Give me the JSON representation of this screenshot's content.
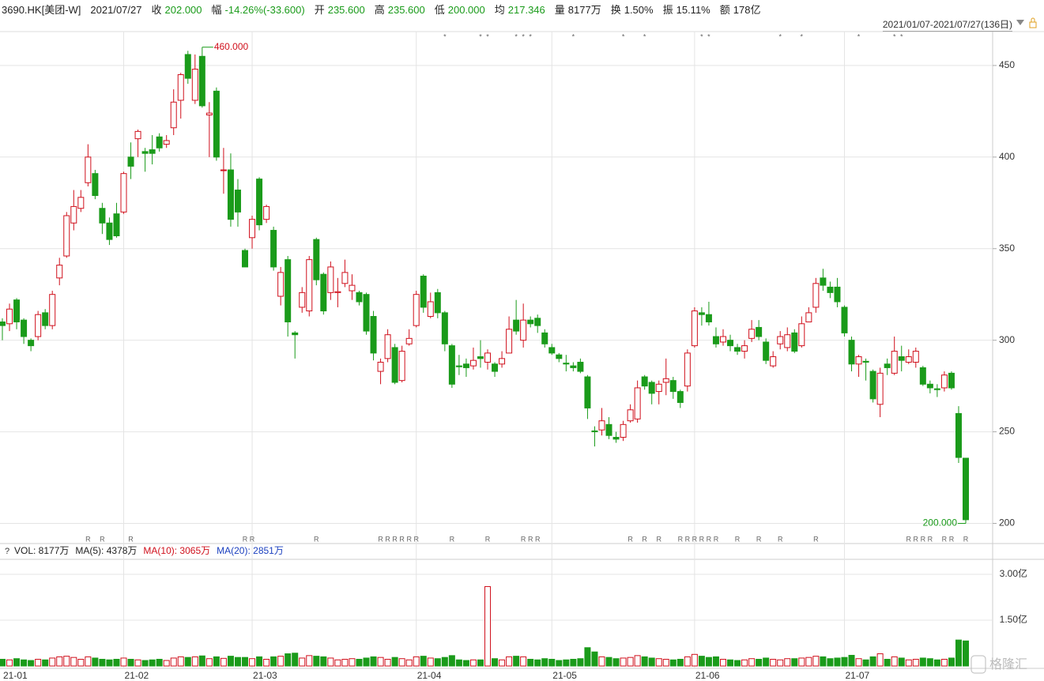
{
  "header": {
    "symbol": "3690.HK[美团-W]",
    "date": "2021/07/27",
    "fields": [
      {
        "label": "收",
        "value": "202.000",
        "color": "#1a9b1a"
      },
      {
        "label": "幅",
        "value": "-14.26%(-33.600)",
        "color": "#1a9b1a"
      },
      {
        "label": "开",
        "value": "235.600",
        "color": "#1a9b1a"
      },
      {
        "label": "高",
        "value": "235.600",
        "color": "#1a9b1a"
      },
      {
        "label": "低",
        "value": "200.000",
        "color": "#1a9b1a"
      },
      {
        "label": "均",
        "value": "217.346",
        "color": "#1a9b1a"
      },
      {
        "label": "量",
        "value": "8177万",
        "color": "#222222"
      },
      {
        "label": "换",
        "value": "1.50%",
        "color": "#222222"
      },
      {
        "label": "振",
        "value": "15.11%",
        "color": "#222222"
      },
      {
        "label": "额",
        "value": "178亿",
        "color": "#222222"
      }
    ]
  },
  "range": "2021/01/07-2021/07/27(136日)",
  "watermark": "格隆汇",
  "chart_data": [
    {
      "type": "candlestick",
      "up_color": "#d0101c",
      "down_color": "#1a9b1a",
      "ylim": [
        189,
        468.5
      ],
      "yticks": [
        200,
        250,
        300,
        350,
        400,
        450
      ],
      "grid": true,
      "high_label": "460.000",
      "low_label": "200.000",
      "categories": [
        "21-01",
        null,
        null,
        null,
        null,
        null,
        null,
        null,
        null,
        null,
        null,
        null,
        null,
        null,
        null,
        null,
        null,
        "21-02",
        null,
        null,
        null,
        null,
        null,
        null,
        null,
        null,
        null,
        null,
        null,
        null,
        null,
        null,
        null,
        null,
        null,
        "21-03",
        null,
        null,
        null,
        null,
        null,
        null,
        null,
        null,
        null,
        null,
        null,
        null,
        null,
        null,
        null,
        null,
        null,
        null,
        null,
        null,
        null,
        null,
        "21-04",
        null,
        null,
        null,
        null,
        null,
        null,
        null,
        null,
        null,
        null,
        null,
        null,
        null,
        null,
        null,
        null,
        null,
        null,
        "21-05",
        null,
        null,
        null,
        null,
        null,
        null,
        null,
        null,
        null,
        null,
        null,
        null,
        null,
        null,
        null,
        null,
        null,
        null,
        null,
        "21-06",
        null,
        null,
        null,
        null,
        null,
        null,
        null,
        null,
        null,
        null,
        null,
        null,
        null,
        null,
        null,
        null,
        null,
        null,
        null,
        null,
        "21-07",
        null,
        null,
        null,
        null,
        null,
        null,
        null,
        null,
        null,
        null,
        null,
        null,
        null,
        null,
        null,
        null,
        null
      ],
      "open": [
        310,
        309,
        322,
        311,
        300,
        302,
        315,
        308,
        334,
        346,
        364,
        372,
        386,
        391,
        372,
        364,
        369,
        370,
        400,
        410,
        403,
        404,
        411,
        407,
        416,
        431,
        456,
        431,
        455,
        423,
        436,
        393,
        393,
        382,
        349,
        356,
        388,
        366,
        360,
        324,
        344,
        304,
        318,
        316,
        355,
        336,
        326,
        326,
        331,
        327,
        326,
        325,
        313,
        283,
        290,
        296,
        278,
        298,
        308,
        335,
        313,
        326,
        315,
        297,
        286,
        287,
        286,
        291,
        288,
        287,
        287,
        293,
        311,
        300,
        311,
        312,
        304,
        296,
        292,
        287.5,
        286,
        288,
        280,
        250.5,
        251,
        254,
        247,
        247,
        256,
        257,
        280,
        277,
        272,
        277,
        278,
        272,
        275,
        297,
        315,
        314,
        302,
        299,
        300,
        296,
        294,
        301,
        307,
        299,
        286,
        298,
        296,
        304,
        297,
        310,
        318,
        334,
        329,
        329,
        318,
        300,
        287,
        288.5,
        283,
        265,
        287,
        282,
        291,
        288,
        288,
        285,
        276,
        273.5,
        274,
        282,
        260,
        235.6
      ],
      "high": [
        312,
        320,
        323,
        312,
        301,
        316,
        317,
        327,
        345,
        370,
        382,
        382,
        407,
        393,
        375,
        367,
        375,
        392,
        408,
        415,
        405,
        412,
        413,
        412,
        437,
        446,
        458,
        456,
        460,
        430,
        438,
        405,
        402,
        388,
        350,
        368,
        389,
        374,
        362,
        340,
        346,
        305,
        329,
        346,
        356,
        337,
        343,
        334,
        344,
        336,
        327,
        326,
        316,
        290,
        306,
        298,
        297,
        306,
        327,
        336,
        326,
        328,
        316,
        298,
        292,
        290,
        296,
        300,
        295,
        288,
        294,
        313,
        322,
        320,
        313,
        314,
        306,
        298,
        293,
        292,
        288,
        290,
        281,
        253,
        263,
        258,
        250,
        256,
        265,
        278,
        281,
        278,
        278,
        290,
        280,
        273,
        295,
        318,
        318,
        321,
        307,
        306,
        303,
        298,
        300,
        311,
        311,
        301,
        294,
        305,
        307,
        306,
        313,
        318,
        334,
        339,
        332,
        334,
        319,
        302,
        292,
        290,
        284,
        285,
        290,
        302,
        297,
        295,
        296,
        286,
        278,
        276,
        283,
        283,
        264,
        235.6
      ],
      "low": [
        300,
        305,
        306,
        298,
        294,
        300,
        306,
        306,
        330,
        345,
        360,
        370,
        384,
        377,
        358,
        352,
        356,
        369,
        388,
        400,
        392,
        396,
        403,
        405,
        412,
        421,
        440,
        429,
        427,
        400,
        398,
        380,
        362,
        362,
        340,
        350,
        360,
        364,
        338,
        319,
        302,
        290,
        315,
        313,
        330,
        314,
        322,
        318,
        329,
        322,
        319,
        303,
        289,
        276,
        288,
        276,
        277,
        297,
        307,
        315,
        312,
        312,
        294,
        274,
        281,
        280,
        284,
        285,
        284,
        280,
        285,
        293,
        303,
        296,
        307,
        304,
        296,
        292,
        288,
        283,
        283,
        282,
        257,
        242,
        248,
        246,
        244,
        245,
        255,
        255,
        273,
        265,
        265,
        270,
        268,
        263,
        272,
        296,
        308,
        308,
        296,
        297,
        294,
        292,
        290,
        299,
        300,
        287,
        285,
        295,
        294,
        293,
        296,
        310,
        315,
        327,
        323,
        318,
        302,
        283,
        280,
        278,
        266,
        258,
        281,
        281,
        283,
        287,
        285,
        275,
        271,
        269,
        272,
        273,
        233,
        200
      ],
      "close": [
        308,
        317,
        310,
        302,
        297,
        314,
        308,
        325,
        341,
        368,
        373,
        378,
        400,
        379,
        364,
        355,
        357,
        391,
        395,
        414,
        402,
        402,
        405,
        409,
        430,
        445,
        443,
        448,
        428,
        424,
        400,
        393,
        366,
        370,
        340,
        366,
        363,
        373,
        340,
        337,
        310,
        303,
        326,
        344,
        333,
        316,
        340,
        326.5,
        337,
        330,
        321,
        305,
        293,
        288,
        303,
        277,
        294,
        301,
        325,
        318,
        321,
        315,
        298,
        276,
        285.5,
        285,
        289,
        290,
        293,
        283,
        290,
        306,
        305,
        311,
        309,
        308,
        298,
        293,
        290,
        287,
        285,
        283,
        263,
        250,
        256,
        248,
        246,
        254,
        262,
        274,
        275,
        271,
        276,
        279,
        272,
        266,
        293,
        316,
        314,
        310,
        298,
        302,
        297,
        294,
        297,
        306,
        302,
        289,
        291,
        302,
        303,
        294,
        309,
        315,
        331,
        330,
        326,
        321,
        304,
        287,
        291,
        288,
        268,
        282,
        285,
        294,
        289,
        291,
        294,
        276,
        274,
        273,
        281,
        274,
        236,
        202
      ],
      "stars": [
        null,
        null,
        null,
        null,
        null,
        null,
        null,
        null,
        null,
        null,
        null,
        null,
        null,
        null,
        null,
        null,
        null,
        null,
        null,
        null,
        null,
        null,
        null,
        null,
        null,
        null,
        null,
        null,
        null,
        null,
        null,
        null,
        null,
        null,
        null,
        null,
        null,
        null,
        null,
        null,
        null,
        null,
        null,
        null,
        null,
        null,
        null,
        null,
        null,
        null,
        null,
        null,
        null,
        null,
        null,
        null,
        null,
        null,
        null,
        null,
        null,
        null,
        "*",
        null,
        null,
        null,
        null,
        "*",
        "*",
        null,
        null,
        null,
        "*",
        "*",
        "*",
        null,
        null,
        null,
        null,
        null,
        "*",
        null,
        null,
        null,
        null,
        null,
        null,
        "*",
        null,
        null,
        "*",
        null,
        null,
        null,
        null,
        null,
        null,
        null,
        "*",
        "*",
        null,
        null,
        null,
        null,
        null,
        null,
        null,
        null,
        null,
        "*",
        null,
        null,
        "*",
        null,
        null,
        null,
        null,
        null,
        null,
        null,
        "*",
        null,
        null,
        null,
        null,
        "*",
        "*",
        null,
        null,
        null,
        null,
        null,
        null,
        null,
        null,
        null
      ],
      "r_marks": [
        null,
        null,
        null,
        null,
        null,
        null,
        null,
        null,
        null,
        null,
        null,
        null,
        "R",
        null,
        "R",
        null,
        null,
        null,
        "R",
        null,
        null,
        null,
        null,
        null,
        null,
        null,
        null,
        null,
        null,
        null,
        null,
        null,
        null,
        null,
        "R",
        "R",
        null,
        null,
        null,
        null,
        null,
        null,
        null,
        null,
        "R",
        null,
        null,
        null,
        null,
        null,
        null,
        null,
        null,
        "R",
        "R",
        "R",
        "R",
        "R",
        "R",
        null,
        null,
        null,
        null,
        "R",
        null,
        null,
        null,
        null,
        "R",
        null,
        null,
        null,
        null,
        "R",
        "R",
        "R",
        null,
        null,
        null,
        null,
        null,
        null,
        null,
        null,
        null,
        null,
        null,
        null,
        "R",
        null,
        "R",
        null,
        "R",
        null,
        null,
        "R",
        "R",
        "R",
        "R",
        "R",
        "R",
        null,
        null,
        "R",
        null,
        null,
        "R",
        null,
        null,
        "R",
        null,
        null,
        null,
        null,
        "R",
        null,
        null,
        null,
        null,
        null,
        null,
        null,
        null,
        null,
        null,
        null,
        null,
        "R",
        "R",
        "R",
        "R",
        null,
        "R",
        "R",
        null,
        "R"
      ]
    },
    {
      "type": "bar",
      "ylim": [
        0,
        3.44
      ],
      "yticks": [
        {
          "value": 1.5,
          "label": "1.50亿"
        },
        {
          "value": 3,
          "label": "3.00亿"
        }
      ],
      "legend": [
        {
          "text": "VOL: 8177万",
          "color": "#222222"
        },
        {
          "text": "MA(5): 4378万",
          "color": "#222222"
        },
        {
          "text": "MA(10): 3065万",
          "color": "#d0101c"
        },
        {
          "text": "MA(20): 2851万",
          "color": "#1a3fbf"
        }
      ],
      "values": [
        0.22,
        0.2,
        0.24,
        0.2,
        0.18,
        0.22,
        0.2,
        0.26,
        0.3,
        0.32,
        0.28,
        0.22,
        0.3,
        0.26,
        0.22,
        0.2,
        0.22,
        0.26,
        0.22,
        0.2,
        0.18,
        0.2,
        0.22,
        0.18,
        0.26,
        0.3,
        0.28,
        0.3,
        0.33,
        0.24,
        0.3,
        0.25,
        0.32,
        0.28,
        0.28,
        0.24,
        0.3,
        0.22,
        0.3,
        0.32,
        0.4,
        0.42,
        0.26,
        0.34,
        0.32,
        0.3,
        0.26,
        0.2,
        0.22,
        0.24,
        0.22,
        0.26,
        0.3,
        0.28,
        0.22,
        0.28,
        0.24,
        0.2,
        0.3,
        0.32,
        0.26,
        0.24,
        0.28,
        0.34,
        0.2,
        0.18,
        0.2,
        0.2,
        2.6,
        0.24,
        0.2,
        0.3,
        0.32,
        0.3,
        0.22,
        0.2,
        0.24,
        0.22,
        0.18,
        0.2,
        0.22,
        0.24,
        0.6,
        0.46,
        0.3,
        0.28,
        0.24,
        0.26,
        0.28,
        0.34,
        0.3,
        0.26,
        0.24,
        0.22,
        0.2,
        0.22,
        0.3,
        0.38,
        0.32,
        0.28,
        0.3,
        0.22,
        0.2,
        0.18,
        0.2,
        0.24,
        0.22,
        0.26,
        0.22,
        0.2,
        0.24,
        0.24,
        0.26,
        0.28,
        0.32,
        0.3,
        0.24,
        0.26,
        0.28,
        0.35,
        0.24,
        0.2,
        0.3,
        0.4,
        0.22,
        0.3,
        0.26,
        0.2,
        0.22,
        0.26,
        0.24,
        0.2,
        0.22,
        0.26,
        0.85,
        0.82
      ]
    }
  ]
}
